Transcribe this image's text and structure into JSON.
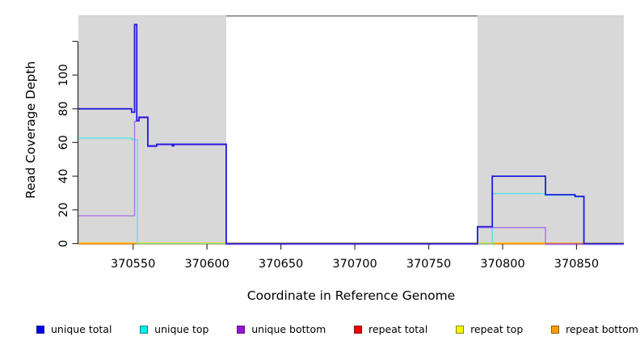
{
  "chart_data": {
    "type": "line",
    "title": "",
    "xlabel": "Coordinate in Reference Genome",
    "ylabel": "Read Coverage Depth",
    "xlim": [
      370513,
      370882
    ],
    "ylim": [
      0,
      135
    ],
    "grid": false,
    "x_ticks": [
      370550,
      370600,
      370650,
      370700,
      370750,
      370800,
      370850
    ],
    "x_tick_labels": [
      "370550",
      "370600",
      "370650",
      "370700",
      "370750",
      "370800",
      "370850"
    ],
    "y_ticks": [
      0,
      20,
      40,
      60,
      80,
      100,
      120
    ],
    "y_tick_labels": [
      "0",
      "20",
      "40",
      "60",
      "80",
      "100",
      ""
    ],
    "shaded_regions": [
      {
        "from": 370513,
        "to": 370613,
        "color": "#d8d8d8"
      },
      {
        "from": 370783,
        "to": 370882,
        "color": "#d8d8d8"
      }
    ],
    "baseline_overlays": [
      {
        "from": 370513,
        "to": 370552.5,
        "color": "#ff9100"
      },
      {
        "from": 370552.5,
        "to": 370613,
        "color": "#8cd98c"
      },
      {
        "from": 370783,
        "to": 370793,
        "color": "#8cd98c"
      },
      {
        "from": 370793,
        "to": 370829,
        "color": "#ff9100"
      },
      {
        "from": 370829,
        "to": 370855,
        "color": "#d4556a"
      }
    ],
    "series": [
      {
        "name": "repeat total",
        "color": "#e00000",
        "layer": 1,
        "dy": 0,
        "width": 1.4,
        "paths": [
          [
            [
              370513,
              0
            ],
            [
              370882,
              0
            ]
          ]
        ]
      },
      {
        "name": "repeat top",
        "color": "#f0f000",
        "layer": 1,
        "dy": -0.7,
        "width": 1.4,
        "paths": [
          [
            [
              370513,
              0
            ],
            [
              370882,
              0
            ]
          ]
        ]
      },
      {
        "name": "repeat bottom",
        "color": "#ff9100",
        "layer": 1,
        "dy": 0,
        "width": 1.4,
        "paths": [
          [
            [
              370513,
              0
            ],
            [
              370882,
              0
            ]
          ]
        ]
      },
      {
        "name": "unique top",
        "color": "#5ee0e8",
        "layer": 3,
        "dy": 0.7,
        "width": 1.5,
        "paths": [
          [
            [
              370513,
              63
            ],
            [
              370549,
              63
            ],
            [
              370549,
              62
            ],
            [
              370553,
              62
            ],
            [
              370553,
              0
            ]
          ],
          [
            [
              370793,
              0
            ],
            [
              370793,
              30
            ],
            [
              370829,
              30
            ],
            [
              370829,
              29
            ],
            [
              370849,
              29
            ],
            [
              370849,
              28
            ],
            [
              370855,
              28
            ],
            [
              370855,
              0
            ]
          ]
        ]
      },
      {
        "name": "unique bottom",
        "color": "#a873e6",
        "layer": 3,
        "dy": 1.0,
        "width": 1.4,
        "paths": [
          [
            [
              370513,
              17
            ],
            [
              370551,
              17
            ],
            [
              370551,
              73
            ],
            [
              370554,
              73
            ],
            [
              370554,
              75
            ],
            [
              370560,
              75
            ],
            [
              370560,
              58
            ],
            [
              370566,
              58
            ],
            [
              370566,
              59
            ],
            [
              370613,
              59
            ],
            [
              370613,
              0
            ],
            [
              370783,
              0
            ],
            [
              370783,
              10
            ],
            [
              370829,
              10
            ],
            [
              370829,
              0
            ],
            [
              370882,
              0
            ]
          ]
        ]
      },
      {
        "name": "unique total",
        "color": "#231bdc",
        "layer": 3,
        "dy": 0,
        "width": 1.8,
        "paths": [
          [
            [
              370513,
              80
            ],
            [
              370549,
              80
            ],
            [
              370549,
              78
            ],
            [
              370551,
              78
            ],
            [
              370551,
              130
            ],
            [
              370552.5,
              130
            ],
            [
              370552.5,
              73
            ],
            [
              370554,
              73
            ],
            [
              370554,
              75
            ],
            [
              370560,
              75
            ],
            [
              370560,
              58
            ],
            [
              370566,
              58
            ],
            [
              370566,
              59
            ],
            [
              370576.5,
              59
            ],
            [
              370576.5,
              58
            ],
            [
              370577.5,
              58
            ],
            [
              370577.5,
              59
            ],
            [
              370613,
              59
            ],
            [
              370613,
              0
            ],
            [
              370783,
              0
            ],
            [
              370783,
              10
            ],
            [
              370793,
              10
            ],
            [
              370793,
              40
            ],
            [
              370829,
              40
            ],
            [
              370829,
              29
            ],
            [
              370849,
              29
            ],
            [
              370849,
              28
            ],
            [
              370855,
              28
            ],
            [
              370855,
              0
            ],
            [
              370882,
              0
            ]
          ]
        ]
      }
    ],
    "legend_position": "bottom"
  },
  "legend": {
    "items": [
      {
        "label": "unique total",
        "color": "#0000f0"
      },
      {
        "label": "unique top",
        "color": "#00eeee"
      },
      {
        "label": "unique bottom",
        "color": "#9b11d8"
      },
      {
        "label": "repeat total",
        "color": "#ee0000"
      },
      {
        "label": "repeat top",
        "color": "#f5f500"
      },
      {
        "label": "repeat bottom",
        "color": "#ff9d00"
      }
    ]
  }
}
